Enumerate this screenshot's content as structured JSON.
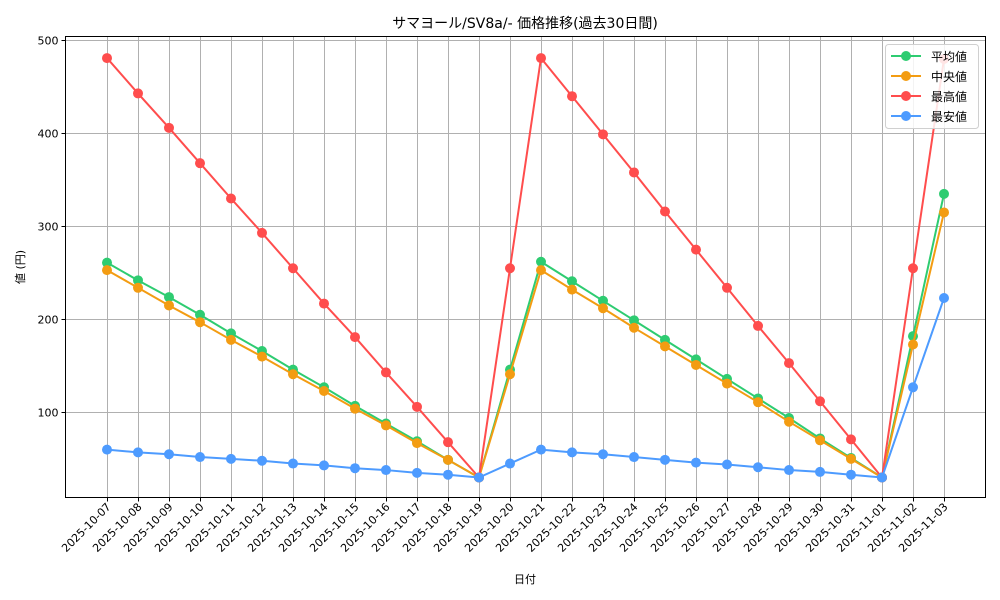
{
  "chart_data": {
    "type": "line",
    "title": "サマヨール/SV8a/- 価格推移(過去30日間)",
    "xlabel": "日付",
    "ylabel": "値 (円)",
    "ylim": [
      10,
      503
    ],
    "yticks": [
      100,
      200,
      300,
      400,
      500
    ],
    "grid": true,
    "legend_position": "upper right",
    "x": [
      "2025-10-07",
      "2025-10-08",
      "2025-10-09",
      "2025-10-10",
      "2025-10-11",
      "2025-10-12",
      "2025-10-13",
      "2025-10-14",
      "2025-10-15",
      "2025-10-16",
      "2025-10-17",
      "2025-10-18",
      "2025-10-19",
      "2025-10-20",
      "2025-10-21",
      "2025-10-22",
      "2025-10-23",
      "2025-10-24",
      "2025-10-25",
      "2025-10-26",
      "2025-10-27",
      "2025-10-28",
      "2025-10-29",
      "2025-10-30",
      "2025-10-31",
      "2025-11-01",
      "2025-11-02",
      "2025-11-03"
    ],
    "series": [
      {
        "name": "平均値",
        "color": "#2ecc71",
        "values": [
          261,
          242,
          224,
          205,
          185,
          166,
          146,
          127,
          107,
          88,
          69,
          49,
          30,
          146,
          262,
          241,
          220,
          199,
          178,
          157,
          136,
          115,
          94,
          72,
          51,
          30,
          182,
          335
        ]
      },
      {
        "name": "中央値",
        "color": "#f39c12",
        "values": [
          253,
          234,
          215,
          197,
          178,
          160,
          141,
          123,
          104,
          86,
          67,
          49,
          30,
          141,
          253,
          232,
          212,
          191,
          171,
          151,
          131,
          111,
          90,
          70,
          50,
          30,
          173,
          315
        ]
      },
      {
        "name": "最高値",
        "color": "#ff4d4d",
        "values": [
          481,
          443,
          406,
          368,
          330,
          293,
          255,
          217,
          181,
          143,
          106,
          68,
          30,
          255,
          481,
          440,
          399,
          358,
          316,
          275,
          234,
          193,
          153,
          112,
          71,
          30,
          255,
          480
        ]
      },
      {
        "name": "最安値",
        "color": "#4d9bff",
        "values": [
          60,
          57,
          55,
          52,
          50,
          48,
          45,
          43,
          40,
          38,
          35,
          33,
          30,
          45,
          60,
          57,
          55,
          52,
          49,
          46,
          44,
          41,
          38,
          36,
          33,
          30,
          127,
          223
        ]
      }
    ]
  }
}
